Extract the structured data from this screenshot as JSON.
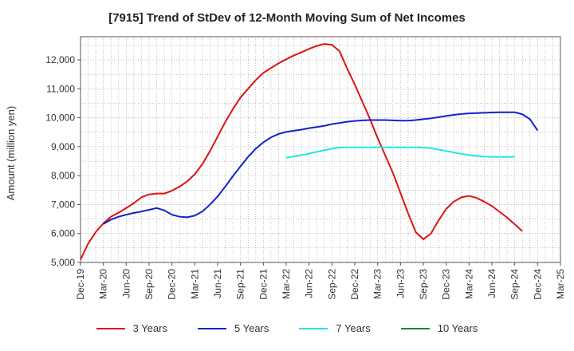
{
  "chart_data": {
    "type": "line",
    "title": "[7915]  Trend of StDev of 12-Month Moving Sum of Net Incomes",
    "ylabel": "Amount (million yen)",
    "xlabel": "",
    "ylim": [
      5000,
      12800
    ],
    "y_ticks": [
      5000,
      6000,
      7000,
      8000,
      9000,
      10000,
      11000,
      12000
    ],
    "y_tick_labels": [
      "5,000",
      "6,000",
      "7,000",
      "8,000",
      "9,000",
      "10,000",
      "11,000",
      "12,000"
    ],
    "x_tick_labels": [
      "Dec-19",
      "Mar-20",
      "Jun-20",
      "Sep-20",
      "Dec-20",
      "Mar-21",
      "Jun-21",
      "Sep-21",
      "Dec-21",
      "Mar-22",
      "Jun-22",
      "Sep-22",
      "Dec-22",
      "Mar-23",
      "Jun-23",
      "Sep-23",
      "Dec-23",
      "Mar-24",
      "Jun-24",
      "Sep-24",
      "Dec-24",
      "Mar-25"
    ],
    "grid": true,
    "legend_position": "bottom",
    "series": [
      {
        "name": "3 Years",
        "color": "#dd1111",
        "start": "Dec-19",
        "values": [
          5100,
          5650,
          6050,
          6350,
          6580,
          6720,
          6880,
          7050,
          7250,
          7350,
          7380,
          7380,
          7480,
          7620,
          7800,
          8050,
          8400,
          8850,
          9350,
          9850,
          10300,
          10700,
          11000,
          11300,
          11550,
          11720,
          11880,
          12020,
          12150,
          12260,
          12380,
          12480,
          12550,
          12520,
          12300,
          11700,
          11150,
          10550,
          9950,
          9300,
          8700,
          8100,
          7400,
          6700,
          6050,
          5800,
          6000,
          6450,
          6850,
          7100,
          7250,
          7300,
          7230,
          7100,
          6950,
          6750,
          6550,
          6320,
          6080
        ]
      },
      {
        "name": "5 Years",
        "color": "#1122cc",
        "start": "Mar-20",
        "values": [
          6330,
          6480,
          6580,
          6650,
          6710,
          6760,
          6820,
          6880,
          6800,
          6650,
          6580,
          6560,
          6620,
          6760,
          7000,
          7280,
          7620,
          7980,
          8320,
          8650,
          8930,
          9150,
          9320,
          9440,
          9510,
          9550,
          9590,
          9640,
          9680,
          9720,
          9780,
          9820,
          9860,
          9890,
          9910,
          9920,
          9920,
          9920,
          9910,
          9900,
          9900,
          9920,
          9950,
          9980,
          10020,
          10060,
          10100,
          10130,
          10150,
          10160,
          10170,
          10180,
          10190,
          10190,
          10190,
          10120,
          9950,
          9560
        ]
      },
      {
        "name": "7 Years",
        "color": "#22e5e5",
        "start": "Mar-22",
        "values": [
          8620,
          8660,
          8710,
          8760,
          8820,
          8880,
          8930,
          8970,
          8980,
          8980,
          8980,
          8980,
          8980,
          8980,
          8980,
          8980,
          8980,
          8980,
          8970,
          8950,
          8900,
          8850,
          8800,
          8750,
          8710,
          8680,
          8660,
          8650,
          8650,
          8650,
          8650
        ]
      },
      {
        "name": "10 Years",
        "color": "#228822",
        "start": "Mar-25",
        "values": []
      }
    ]
  }
}
